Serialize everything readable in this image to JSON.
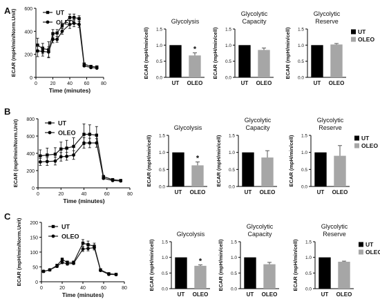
{
  "figure": {
    "panel_labels": [
      "A",
      "B",
      "C"
    ]
  },
  "colors": {
    "ut": "#000000",
    "oleo": "#a6a6a6",
    "line": "#1a1a1a"
  },
  "legend": {
    "ut": "UT",
    "oleo": "OLEO"
  },
  "chart_data": [
    {
      "panel": "A",
      "type": "line",
      "xlabel": "Time (minutes)",
      "ylabel": "ECAR (mpH/min/Norm.Unit)",
      "xlim": [
        0,
        80
      ],
      "xticks": [
        0,
        20,
        40,
        60,
        80
      ],
      "ylim": [
        0,
        600
      ],
      "yticks": [
        0,
        200,
        400,
        600
      ],
      "legend_entries": [
        "UT",
        "OLEO"
      ],
      "legend_position": "top-left",
      "x": [
        2,
        8,
        15,
        20,
        25,
        31,
        40,
        45,
        51,
        57,
        65,
        72
      ],
      "series": [
        {
          "name": "UT",
          "values": [
            280,
            250,
            240,
            380,
            385,
            450,
            520,
            520,
            510,
            115,
            95,
            90
          ],
          "err": [
            60,
            45,
            70,
            35,
            30,
            20,
            30,
            30,
            25,
            10,
            8,
            8
          ]
        },
        {
          "name": "OLEO",
          "values": [
            230,
            225,
            220,
            330,
            330,
            400,
            460,
            470,
            460,
            100,
            85,
            80
          ],
          "err": [
            50,
            40,
            45,
            30,
            25,
            25,
            35,
            30,
            25,
            8,
            8,
            6
          ]
        }
      ]
    },
    {
      "panel": "A",
      "type": "bar",
      "title": "Glycolysis",
      "ylabel": "ECAR (mpH/min/cell)",
      "categories": [
        "UT",
        "OLEO"
      ],
      "values": [
        1.0,
        0.68
      ],
      "errors": [
        0,
        0.08
      ],
      "significance": [
        "",
        "*"
      ],
      "ylim": [
        0,
        1.5
      ],
      "yticks": [
        "0.0",
        "0.5",
        "1.0",
        "1.5"
      ]
    },
    {
      "panel": "A",
      "type": "bar",
      "title": "Glycolytic\nCapacity",
      "ylabel": "ECAR (mpH/min/cell)",
      "categories": [
        "UT",
        "OLEO"
      ],
      "values": [
        1.0,
        0.85
      ],
      "errors": [
        0,
        0.06
      ],
      "significance": [
        "",
        ""
      ],
      "ylim": [
        0,
        1.5
      ],
      "yticks": [
        "0.0",
        "0.5",
        "1.0",
        "1.5"
      ]
    },
    {
      "panel": "A",
      "type": "bar",
      "title": "Glycolytic\nReserve",
      "ylabel": "ECAR (mpH/min/cell)",
      "categories": [
        "UT",
        "OLEO"
      ],
      "values": [
        1.0,
        1.02
      ],
      "errors": [
        0,
        0.03
      ],
      "significance": [
        "",
        ""
      ],
      "ylim": [
        0,
        1.5
      ],
      "yticks": [
        "0.0",
        "0.5",
        "1.0",
        "1.5"
      ],
      "legend_entries": [
        "UT",
        "OLEO"
      ],
      "legend_position": "right"
    },
    {
      "panel": "B",
      "type": "line",
      "xlabel": "Time (minutes)",
      "ylabel": "ECAR (mpH/min/Norm.Unit)",
      "xlim": [
        0,
        80
      ],
      "xticks": [
        0,
        20,
        40,
        60,
        80
      ],
      "ylim": [
        0,
        800
      ],
      "yticks": [
        0,
        200,
        400,
        600,
        800
      ],
      "legend_entries": [
        "UT",
        "OLEO"
      ],
      "legend_position": "top-left",
      "x": [
        2,
        8,
        15,
        20,
        25,
        31,
        40,
        45,
        51,
        57,
        65,
        72
      ],
      "series": [
        {
          "name": "UT",
          "values": [
            370,
            380,
            390,
            450,
            460,
            480,
            620,
            620,
            610,
            130,
            95,
            85
          ],
          "err": [
            70,
            80,
            75,
            80,
            90,
            100,
            120,
            110,
            100,
            15,
            10,
            10
          ]
        },
        {
          "name": "OLEO",
          "values": [
            300,
            305,
            310,
            360,
            365,
            380,
            520,
            520,
            520,
            110,
            85,
            80
          ],
          "err": [
            40,
            45,
            45,
            50,
            45,
            50,
            60,
            55,
            50,
            10,
            8,
            8
          ]
        }
      ]
    },
    {
      "panel": "B",
      "type": "bar",
      "title": "Glycolysis",
      "ylabel": "ECAR (mpH/min/cell)",
      "categories": [
        "UT",
        "OLEO"
      ],
      "values": [
        1.0,
        0.62
      ],
      "errors": [
        0,
        0.1
      ],
      "significance": [
        "",
        "*"
      ],
      "ylim": [
        0,
        1.5
      ],
      "yticks": [
        "0.0",
        "0.5",
        "1.0",
        "1.5"
      ]
    },
    {
      "panel": "B",
      "type": "bar",
      "title": "Glycolytic\nCapacity",
      "ylabel": "ECAR (mpH/min/cell)",
      "categories": [
        "UT",
        "OLEO"
      ],
      "values": [
        1.0,
        0.85
      ],
      "errors": [
        0,
        0.2
      ],
      "significance": [
        "",
        ""
      ],
      "ylim": [
        0,
        1.5
      ],
      "yticks": [
        "0.0",
        "0.5",
        "1.0",
        "1.5"
      ]
    },
    {
      "panel": "B",
      "type": "bar",
      "title": "Glycolytic\nReserve",
      "ylabel": "ECAR (mpH/min/cell)",
      "categories": [
        "UT",
        "OLEO"
      ],
      "values": [
        1.0,
        0.9
      ],
      "errors": [
        0,
        0.3
      ],
      "significance": [
        "",
        ""
      ],
      "ylim": [
        0,
        1.5
      ],
      "yticks": [
        "0.0",
        "0.5",
        "1.0",
        "1.5"
      ],
      "legend_entries": [
        "UT",
        "OLEO"
      ],
      "legend_position": "right"
    },
    {
      "panel": "C",
      "type": "line",
      "xlabel": "Time (minutes)",
      "ylabel": "ECAR (mpH/min/Norm.Unit)",
      "xlim": [
        0,
        80
      ],
      "xticks": [
        0,
        20,
        40,
        60,
        80
      ],
      "ylim": [
        0,
        200
      ],
      "yticks": [
        0,
        50,
        100,
        150,
        200
      ],
      "legend_entries": [
        "UT",
        "OLEO"
      ],
      "legend_position": "top-left",
      "x": [
        2,
        8,
        15,
        20,
        25,
        31,
        40,
        45,
        51,
        57,
        65,
        72
      ],
      "series": [
        {
          "name": "UT",
          "values": [
            35,
            40,
            55,
            75,
            65,
            65,
            130,
            125,
            120,
            40,
            27,
            25
          ],
          "err": [
            3,
            3,
            4,
            5,
            5,
            5,
            12,
            12,
            10,
            4,
            3,
            3
          ]
        },
        {
          "name": "OLEO",
          "values": [
            35,
            40,
            52,
            65,
            60,
            62,
            110,
            112,
            115,
            38,
            25,
            24
          ],
          "err": [
            3,
            3,
            4,
            4,
            4,
            4,
            8,
            8,
            8,
            3,
            3,
            3
          ]
        }
      ]
    },
    {
      "panel": "C",
      "type": "bar",
      "title": "Glycolysis",
      "ylabel": "ECAR (mpH/min/cell)",
      "categories": [
        "UT",
        "OLEO"
      ],
      "values": [
        1.0,
        0.73
      ],
      "errors": [
        0,
        0.03
      ],
      "significance": [
        "",
        "*"
      ],
      "ylim": [
        0,
        1.5
      ],
      "yticks": [
        "0.0",
        "0.5",
        "1.0",
        "1.5"
      ]
    },
    {
      "panel": "C",
      "type": "bar",
      "title": "Glycolytic\nCapacity",
      "ylabel": "ECAR (mpH/min/cell)",
      "categories": [
        "UT",
        "OLEO"
      ],
      "values": [
        1.0,
        0.78
      ],
      "errors": [
        0,
        0.06
      ],
      "significance": [
        "",
        ""
      ],
      "ylim": [
        0,
        1.5
      ],
      "yticks": [
        "0.0",
        "0.5",
        "1.0",
        "1.5"
      ]
    },
    {
      "panel": "C",
      "type": "bar",
      "title": "Glycolytic\nReserve",
      "ylabel": "ECAR (mpH/min/cell)",
      "categories": [
        "UT",
        "OLEO"
      ],
      "values": [
        1.0,
        0.86
      ],
      "errors": [
        0,
        0.02
      ],
      "significance": [
        "",
        ""
      ],
      "ylim": [
        0,
        1.5
      ],
      "yticks": [
        "0.0",
        "0.5",
        "1.0",
        "1.5"
      ],
      "legend_entries": [
        "UT",
        "OLEO"
      ],
      "legend_position": "right"
    }
  ]
}
